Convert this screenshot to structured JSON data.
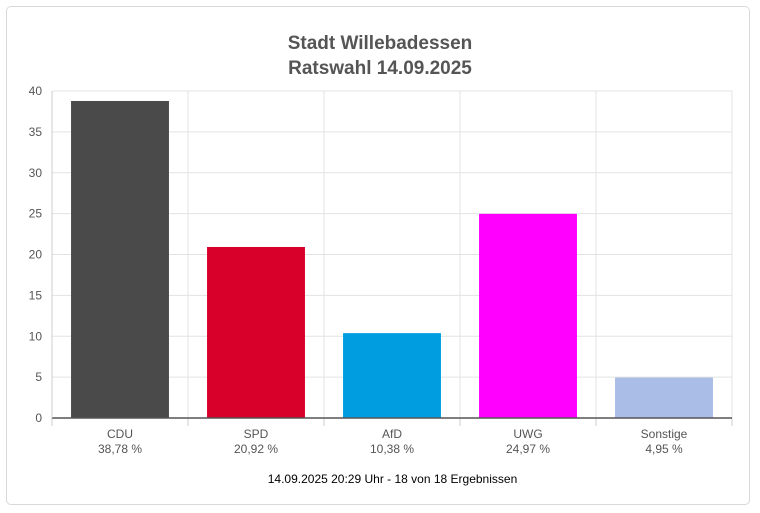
{
  "chart_data": {
    "type": "bar",
    "title_line1": "Stadt Willebadessen",
    "title_line2": "Ratswahl 14.09.2025",
    "categories": [
      "CDU",
      "SPD",
      "AfD",
      "UWG",
      "Sonstige"
    ],
    "values": [
      38.78,
      20.92,
      10.38,
      24.97,
      4.95
    ],
    "value_labels": [
      "38,78 %",
      "20,92 %",
      "10,38 %",
      "24,97 %",
      "4,95 %"
    ],
    "colors": [
      "#4a4a4a",
      "#d8002a",
      "#009ee0",
      "#ff00ff",
      "#aabde6"
    ],
    "ylim": [
      0,
      40
    ],
    "yticks": [
      0,
      5,
      10,
      15,
      20,
      25,
      30,
      35,
      40
    ],
    "grid": true,
    "footer": "14.09.2025 20:29 Uhr - 18 von 18 Ergebnissen"
  }
}
